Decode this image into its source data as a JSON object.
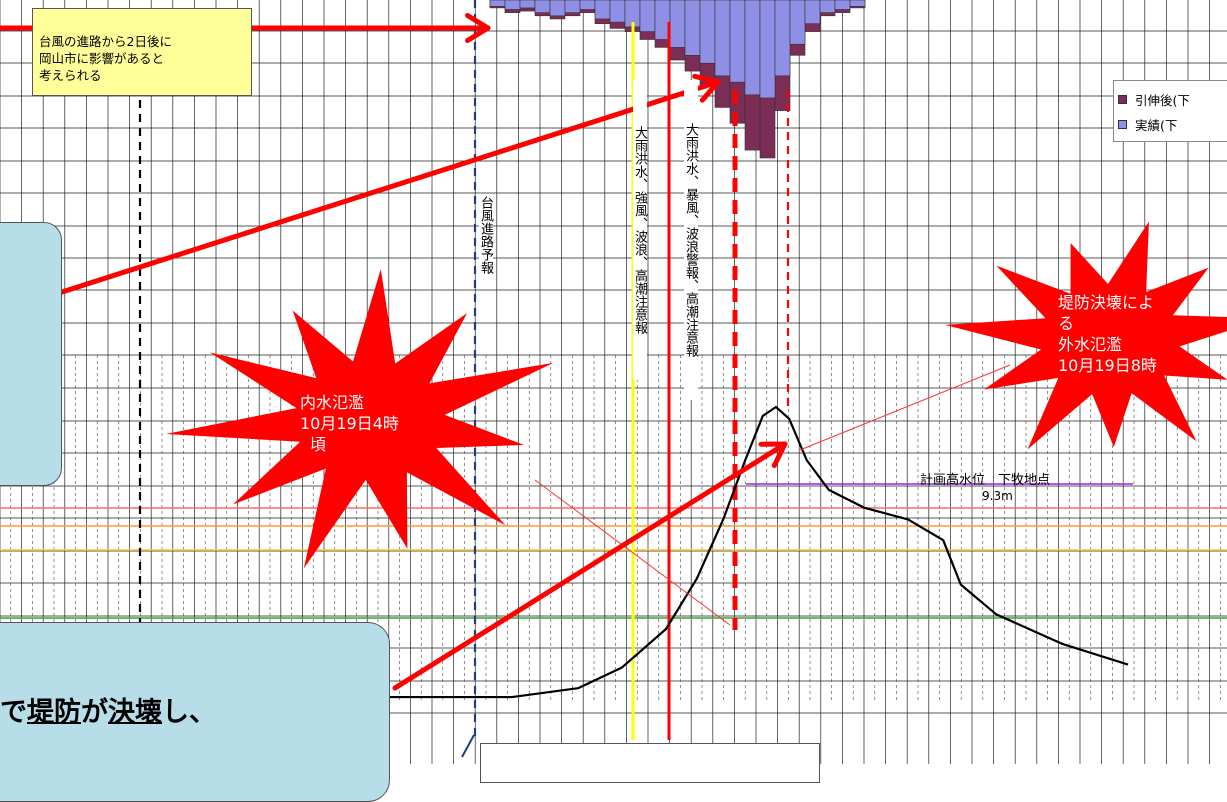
{
  "chart_data": {
    "type": "line",
    "title": "",
    "xlabel": "",
    "ylabel": "",
    "grid": true,
    "legend_placement": "top-right",
    "legend": [
      {
        "label": "引伸後(下",
        "color": "#7b2d55"
      },
      {
        "label": "実績(下",
        "color": "#8f8fe6"
      }
    ],
    "rainfall_series": [
      {
        "name": "引伸後(下",
        "values": [
          0.05,
          0.08,
          0.07,
          0.1,
          0.12,
          0.1,
          0.08,
          0.15,
          0.18,
          0.2,
          0.25,
          0.3,
          0.38,
          0.45,
          0.55,
          0.68,
          0.78,
          0.95,
          1.0,
          0.7,
          0.35,
          0.2,
          0.1,
          0.08,
          0.05
        ]
      },
      {
        "name": "実績(下",
        "values": [
          0.04,
          0.06,
          0.05,
          0.08,
          0.1,
          0.08,
          0.06,
          0.12,
          0.14,
          0.17,
          0.2,
          0.25,
          0.3,
          0.35,
          0.4,
          0.48,
          0.52,
          0.6,
          0.62,
          0.48,
          0.28,
          0.15,
          0.08,
          0.06,
          0.04
        ]
      }
    ],
    "water_level_curve": {
      "name": "",
      "shape": [
        [
          0,
          0.02
        ],
        [
          0.3,
          0.02
        ],
        [
          0.45,
          0.05
        ],
        [
          0.55,
          0.12
        ],
        [
          0.65,
          0.25
        ],
        [
          0.72,
          0.42
        ],
        [
          0.78,
          0.62
        ],
        [
          0.83,
          0.82
        ],
        [
          0.87,
          0.97
        ],
        [
          0.9,
          1.0
        ],
        [
          0.93,
          0.96
        ],
        [
          0.97,
          0.82
        ],
        [
          1.02,
          0.72
        ],
        [
          1.1,
          0.66
        ],
        [
          1.2,
          0.62
        ],
        [
          1.28,
          0.55
        ],
        [
          1.32,
          0.4
        ],
        [
          1.4,
          0.3
        ],
        [
          1.55,
          0.2
        ],
        [
          1.7,
          0.13
        ]
      ]
    },
    "reference_lines": [
      {
        "label": "計画高水位　下牧地点",
        "value_label": "9.3m",
        "color": "#a020f0"
      },
      {
        "label": "",
        "color": "#ff6b6b"
      },
      {
        "label": "",
        "color": "#ff9933"
      },
      {
        "label": "",
        "color": "#ffcc33"
      },
      {
        "label": "",
        "color": "#33aa33"
      }
    ],
    "vertical_markers": [
      {
        "label": "台風進路予報",
        "color": "#1f3f7a",
        "style": "dashed"
      },
      {
        "label": "大雨洪水、強風、波浪、高潮注意報",
        "color": "#ffff00",
        "style": "solid"
      },
      {
        "label": "大雨洪水、暴風、波浪警報、高潮注意報",
        "color": "#ff0000",
        "style": "solid"
      },
      {
        "label": "",
        "color": "#ff0000",
        "style": "thick-dashed"
      },
      {
        "label": "",
        "color": "#ff0000",
        "style": "dashed"
      },
      {
        "label": "",
        "color": "#000000",
        "style": "dashed"
      }
    ]
  },
  "annotations": {
    "yellow_note": "台風の進路から2日後に\n岡山市に影響があると\n考えられる",
    "burst_inner": [
      "内水氾濫",
      "10月19日4時",
      "頃"
    ],
    "burst_outer": [
      "堤防決壊によ",
      "る",
      "外水氾濫",
      "10月19日8時"
    ],
    "bottom_box_pre": "で",
    "bottom_box_u1": "堤防",
    "bottom_box_mid": "が",
    "bottom_box_u2": "決壊",
    "bottom_box_post": "し、",
    "legend_item1": "引伸後(下",
    "legend_item2": "実績(下",
    "plan_level_label": "計画高水位　下牧地点",
    "plan_level_value": "9.3m",
    "vlabel_typhoon": "台風進路予報",
    "vlabel_advisory": "大雨洪水、強風、波浪、高潮注意報",
    "vlabel_warning": "大雨洪水、暴風、波浪警報、高潮注意報"
  },
  "colors": {
    "rain_dark": "#7b2d55",
    "rain_light": "#8f8fe6",
    "arrow": "#ff0000",
    "burst": "#ff0000",
    "note_bg": "#ffff99",
    "box_bg": "#b7dde8",
    "grid": "#222222"
  }
}
